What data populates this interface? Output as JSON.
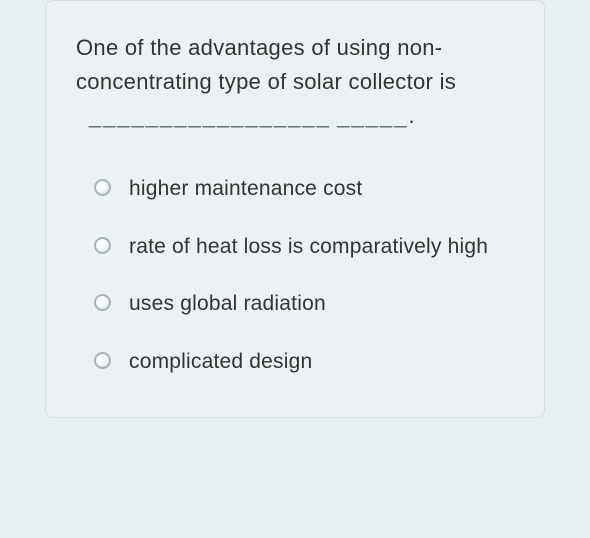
{
  "question": {
    "stem_pre": "One of the advantages of using non-concentrating type of solar collector is",
    "blank_line1": "_________________",
    "blank_line2": "_____",
    "period": "."
  },
  "options": [
    {
      "label": "higher maintenance cost"
    },
    {
      "label": "rate of heat loss is comparatively high"
    },
    {
      "label": "uses global radiation"
    },
    {
      "label": "complicated design"
    }
  ],
  "styling": {
    "background_color": "#e8f0f2",
    "card_background": "#ecf2f3",
    "card_border": "#d5e0e2",
    "text_color": "#333333",
    "radio_border": "#a8b5b8",
    "question_fontsize": 22,
    "option_fontsize": 21
  }
}
